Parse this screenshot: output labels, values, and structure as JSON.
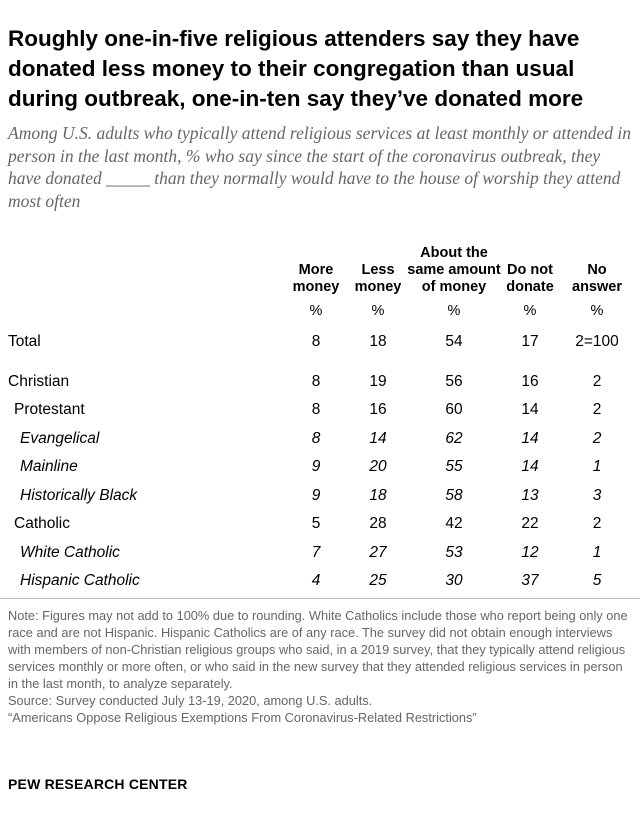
{
  "title": "Roughly one-in-five religious attenders say they have donated less money to their congregation than usual during outbreak, one-in-ten say they’ve donated more",
  "subtitle": "Among U.S. adults who typically attend religious services at least monthly or attended in person in the last month, % who say since the start of the coronavirus outbreak, they have donated _____ than they normally would have to the house of worship they attend most often",
  "chart_data": {
    "type": "table",
    "columns": [
      {
        "label": "More money",
        "unit": "%"
      },
      {
        "label": "Less money",
        "unit": "%"
      },
      {
        "label": "About the same amount of money",
        "unit": "%"
      },
      {
        "label": "Do not donate",
        "unit": "%"
      },
      {
        "label": "No answer",
        "unit": "%"
      }
    ],
    "rows": [
      {
        "label": "Total",
        "values": [
          "8",
          "18",
          "54",
          "17",
          "2=100"
        ]
      },
      {
        "label": "Christian",
        "values": [
          "8",
          "19",
          "56",
          "16",
          "2"
        ]
      },
      {
        "label": "Protestant",
        "values": [
          "8",
          "16",
          "60",
          "14",
          "2"
        ]
      },
      {
        "label": "Evangelical",
        "values": [
          "8",
          "14",
          "62",
          "14",
          "2"
        ]
      },
      {
        "label": "Mainline",
        "values": [
          "9",
          "20",
          "55",
          "14",
          "1"
        ]
      },
      {
        "label": "Historically Black",
        "values": [
          "9",
          "18",
          "58",
          "13",
          "3"
        ]
      },
      {
        "label": "Catholic",
        "values": [
          "5",
          "28",
          "42",
          "22",
          "2"
        ]
      },
      {
        "label": "White Catholic",
        "values": [
          "7",
          "27",
          "53",
          "12",
          "1"
        ]
      },
      {
        "label": "Hispanic Catholic",
        "values": [
          "4",
          "25",
          "30",
          "37",
          "5"
        ]
      }
    ]
  },
  "notes": [
    "Note: Figures may not add to 100% due to rounding. White Catholics include those who report being only one race and are not Hispanic. Hispanic Catholics are of any race. The survey did not obtain enough interviews with members of non-Christian religious groups who said, in a 2019 survey, that they typically attend religious services monthly or more often, or who said in the new survey that they attended religious services in person in the last month, to analyze separately.",
    "Source: Survey conducted July 13-19, 2020, among U.S. adults.",
    "“Americans Oppose Religious Exemptions From Coronavirus-Related Restrictions”"
  ],
  "brand": "PEW RESEARCH CENTER"
}
